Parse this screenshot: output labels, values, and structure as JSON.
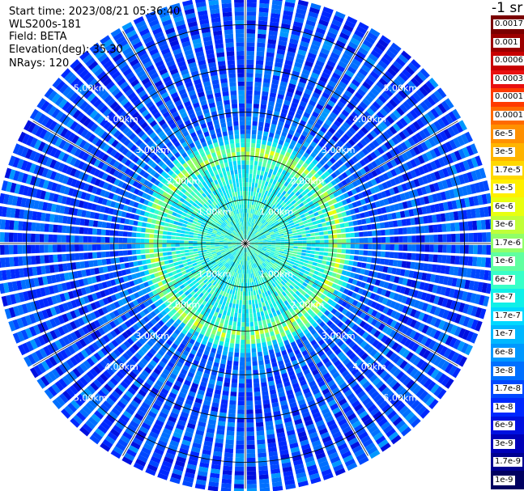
{
  "header": {
    "start_time": "Start time: 2023/08/21 05:36:40",
    "device": "WLS200s-181",
    "field": "Field: BETA",
    "elevation": "Elevation(deg): 35.30",
    "nrays": "NRays: 120"
  },
  "colorbar": {
    "title": "-1 sr",
    "labels": [
      "0.0017",
      "0.001",
      "0.0006",
      "0.0003",
      "0.00017",
      "0.0001",
      "6e-5",
      "3e-5",
      "1.7e-5",
      "1e-5",
      "6e-6",
      "3e-6",
      "1.7e-6",
      "1e-6",
      "6e-7",
      "3e-7",
      "1.7e-7",
      "1e-7",
      "6e-8",
      "3e-8",
      "1.7e-8",
      "1e-8",
      "6e-9",
      "3e-9",
      "1.7e-9",
      "1e-9"
    ],
    "colors": [
      "#7a0000",
      "#9c0000",
      "#c80000",
      "#e81010",
      "#ff3a00",
      "#ff6a00",
      "#ff9000",
      "#ffb400",
      "#ffd800",
      "#fff000",
      "#e8ff10",
      "#c0ff38",
      "#90ff68",
      "#60ffa0",
      "#38ffc8",
      "#10f0e8",
      "#00d8ff",
      "#00b8ff",
      "#0098ff",
      "#0070ff",
      "#0048ff",
      "#0028ff",
      "#0010e0",
      "#0000b8",
      "#000090",
      "#000060"
    ]
  },
  "chart_data": {
    "type": "heatmap",
    "projection": "polar PPI",
    "nrays": 120,
    "rmax_km": 5.6,
    "range_rings_km": [
      1,
      2,
      3,
      4,
      5
    ],
    "ring_labels": [
      "1.00km",
      "2.00km",
      "3.00km",
      "4.00km",
      "5.00km"
    ],
    "spokes_deg": 30,
    "radial_profile": {
      "r_km": [
        0.0,
        1.2,
        1.8,
        2.0,
        2.1,
        2.25,
        2.4,
        2.6,
        3.5,
        5.6
      ],
      "log_beta": [
        -6.3,
        -6.4,
        -6.5,
        -6.0,
        -5.6,
        -6.1,
        -6.8,
        -7.5,
        -7.7,
        -7.7
      ]
    },
    "color_scale": "log10 beta, 1e-9 to 0.0017 sr^-1"
  }
}
